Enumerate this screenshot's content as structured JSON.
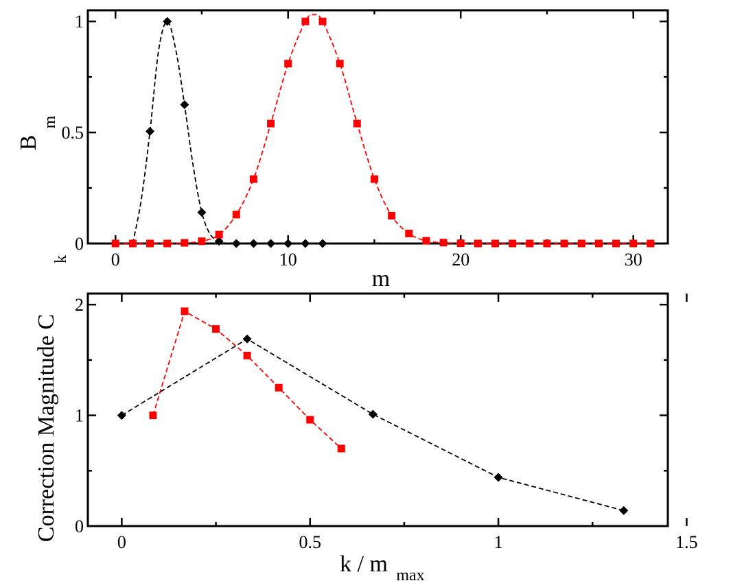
{
  "chart_data": [
    {
      "type": "line",
      "panel": "top",
      "xlabel_main": "m",
      "ylabel_main": "B",
      "ylabel_sub": "m",
      "xlim": [
        -1.6,
        32.0
      ],
      "ylim": [
        0,
        1.05
      ],
      "xticks": [
        0,
        10,
        20,
        30
      ],
      "xtick_labels": [
        "0",
        "10",
        "20",
        "30"
      ],
      "yticks": [
        0,
        0.5,
        1
      ],
      "ytick_labels": [
        "0",
        "0.5",
        "1"
      ],
      "series": [
        {
          "color": "#000000",
          "marker": "diamond",
          "x": [
            0,
            1,
            2,
            3,
            4,
            5,
            6,
            7,
            8,
            9,
            10,
            11,
            12
          ],
          "y": [
            0.0,
            0.0,
            0.505,
            1.0,
            0.625,
            0.14,
            0.01,
            0.0,
            0.0,
            0.0,
            0.0,
            0.0,
            0.0
          ],
          "points_from_index": 2,
          "curve": {
            "x": [
              1.0,
              1.5,
              2.0,
              2.5,
              3.0,
              3.5,
              4.0,
              4.5,
              5.0,
              5.5,
              6.0,
              6.5,
              7.0
            ],
            "y": [
              0.0,
              0.2,
              0.505,
              0.87,
              1.0,
              0.87,
              0.625,
              0.35,
              0.14,
              0.04,
              0.01,
              0.0,
              0.0
            ]
          }
        },
        {
          "color": "#ff0000",
          "marker": "square",
          "x": [
            0,
            1,
            2,
            3,
            4,
            5,
            6,
            7,
            8,
            9,
            10,
            11,
            12,
            13,
            14,
            15,
            16,
            17,
            18,
            19,
            20,
            21,
            22,
            23,
            24,
            25,
            26,
            27,
            28,
            29,
            30,
            31
          ],
          "y": [
            0.0,
            0.0,
            0.0,
            0.0,
            0.003,
            0.01,
            0.04,
            0.13,
            0.29,
            0.54,
            0.81,
            1.0,
            1.0,
            0.81,
            0.54,
            0.29,
            0.125,
            0.045,
            0.012,
            0.004,
            0.001,
            0.0,
            0.0,
            0.0,
            0.0,
            0.0,
            0.0,
            0.0,
            0.0,
            0.0,
            0.0,
            0.0
          ],
          "curve_peak": [
            11.5,
            1.03
          ]
        }
      ]
    },
    {
      "type": "line",
      "panel": "bottom",
      "xlabel_main": "k / m",
      "xlabel_sub": "max",
      "ylabel_main": "Correction Magnitude C",
      "ylabel_sub": "k",
      "xlim": [
        -0.09,
        1.45
      ],
      "ylim": [
        0,
        2.1
      ],
      "xticks": [
        0,
        0.5,
        1,
        1.5
      ],
      "xtick_labels": [
        "0",
        "0.5",
        "1",
        "1.5"
      ],
      "yticks": [
        0,
        1,
        2
      ],
      "ytick_labels": [
        "0",
        "1",
        "2"
      ],
      "series": [
        {
          "color": "#000000",
          "marker": "diamond",
          "x": [
            0,
            0.333,
            0.667,
            1.0,
            1.333
          ],
          "y": [
            1.0,
            1.69,
            1.01,
            0.44,
            0.14
          ]
        },
        {
          "color": "#ff0000",
          "marker": "square",
          "x": [
            0.083,
            0.167,
            0.25,
            0.333,
            0.417,
            0.5,
            0.583
          ],
          "y": [
            1.0,
            1.94,
            1.78,
            1.54,
            1.25,
            0.96,
            0.7
          ]
        }
      ]
    }
  ]
}
